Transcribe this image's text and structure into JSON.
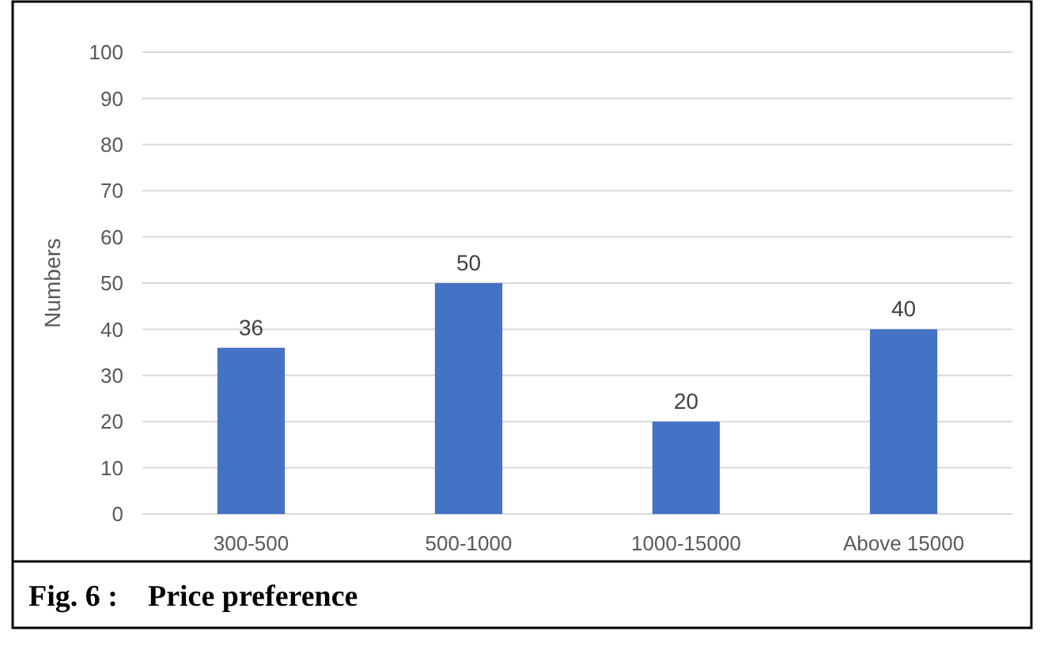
{
  "chart_data": {
    "type": "bar",
    "title": "Fig. 6 :    Price preference",
    "ylabel": "Numbers",
    "categories": [
      "300-500",
      "500-1000",
      "1000-15000",
      "Above 15000"
    ],
    "values": [
      36,
      50,
      20,
      40
    ],
    "color": "#4472c4",
    "ylim": [
      0,
      100
    ],
    "yticks": [
      0,
      10,
      20,
      30,
      40,
      50,
      60,
      70,
      80,
      90,
      100
    ],
    "grid": "y",
    "data_labels": true
  }
}
